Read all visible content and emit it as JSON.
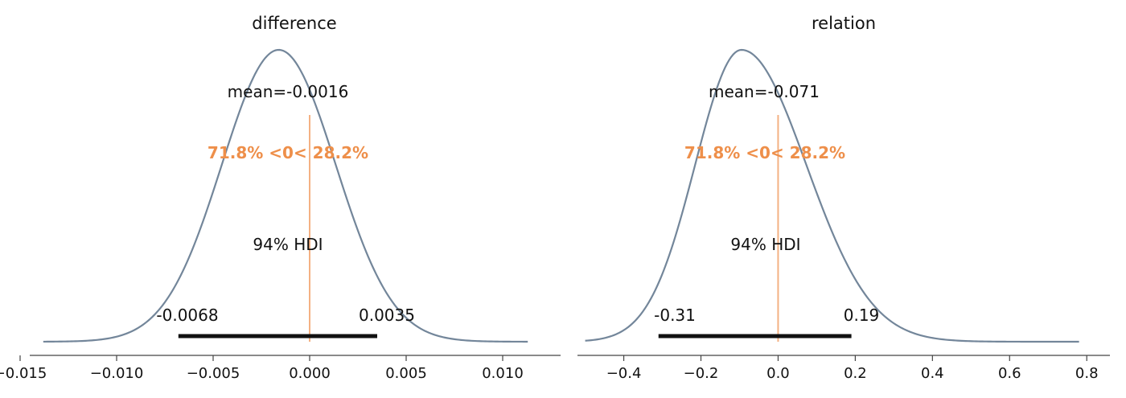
{
  "colors": {
    "curve": "#73869a",
    "hdi_bar": "#111111",
    "ref_line": "#f4b183",
    "ref_text": "#ee8f4a",
    "axis": "#444444"
  },
  "chart_data": [
    {
      "type": "density",
      "title": "difference",
      "xlim": [
        -0.0145,
        0.013
      ],
      "xticks": [
        -0.015,
        -0.01,
        -0.005,
        0.0,
        0.005,
        0.01
      ],
      "xtick_labels": [
        "−0.015",
        "−0.010",
        "−0.005",
        "0.000",
        "0.005",
        "0.010"
      ],
      "density": {
        "mean": -0.0016,
        "sd": 0.00295,
        "x_range": [
          -0.0138,
          0.0113
        ]
      },
      "mean_label": "mean=-0.0016",
      "reference_value": 0,
      "reference_label": "71.8% <0< 28.2%",
      "hdi_label": "94% HDI",
      "hdi": [
        -0.0068,
        0.0035
      ],
      "hdi_labels": [
        "-0.0068",
        "0.0035"
      ]
    },
    {
      "type": "density",
      "title": "relation",
      "xlim": [
        -0.52,
        0.86
      ],
      "xticks": [
        -0.4,
        -0.2,
        0.0,
        0.2,
        0.4,
        0.6,
        0.8
      ],
      "xtick_labels": [
        "−0.4",
        "−0.2",
        "0.0",
        "0.2",
        "0.4",
        "0.6",
        "0.8"
      ],
      "density": {
        "mean": -0.095,
        "sd": 0.12,
        "skew": 1.4,
        "x_range": [
          -0.5,
          0.78
        ]
      },
      "mean_label": "mean=-0.071",
      "reference_value": 0,
      "reference_label": "71.8% <0< 28.2%",
      "hdi_label": "94% HDI",
      "hdi": [
        -0.31,
        0.19
      ],
      "hdi_labels": [
        "-0.31",
        "0.19"
      ]
    }
  ]
}
